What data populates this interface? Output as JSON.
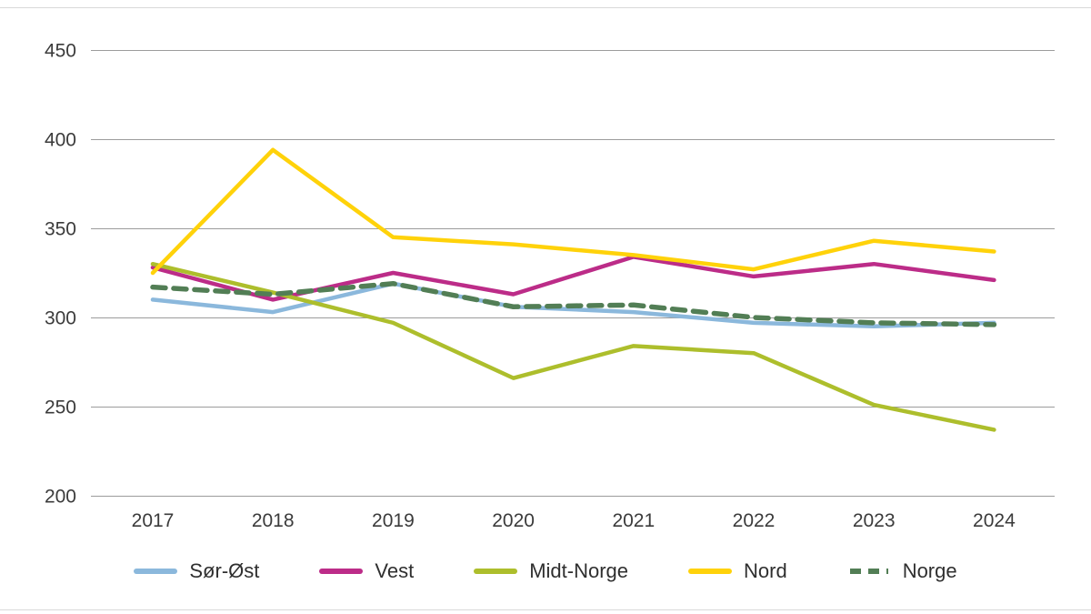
{
  "chart_data": {
    "type": "line",
    "title": "",
    "xlabel": "",
    "ylabel": "",
    "categories": [
      "2017",
      "2018",
      "2019",
      "2020",
      "2021",
      "2022",
      "2023",
      "2024"
    ],
    "ylim": [
      200,
      450
    ],
    "yticks": [
      200,
      250,
      300,
      350,
      400,
      450
    ],
    "grid": "horizontal",
    "legend_position": "bottom",
    "series": [
      {
        "name": "Sør-Øst",
        "color": "#8BB8DC",
        "dashed": false,
        "values": [
          310,
          303,
          319,
          306,
          303,
          297,
          295,
          297
        ]
      },
      {
        "name": "Vest",
        "color": "#BC2C88",
        "dashed": false,
        "values": [
          328,
          310,
          325,
          313,
          334,
          323,
          330,
          321
        ]
      },
      {
        "name": "Midt-Norge",
        "color": "#ADBE2C",
        "dashed": false,
        "values": [
          330,
          314,
          297,
          266,
          284,
          280,
          251,
          237
        ]
      },
      {
        "name": "Nord",
        "color": "#FFD20A",
        "dashed": false,
        "values": [
          325,
          394,
          345,
          341,
          335,
          327,
          343,
          337
        ]
      },
      {
        "name": "Norge",
        "color": "#527E55",
        "dashed": true,
        "values": [
          317,
          313,
          319,
          306,
          307,
          300,
          297,
          296
        ]
      }
    ]
  }
}
